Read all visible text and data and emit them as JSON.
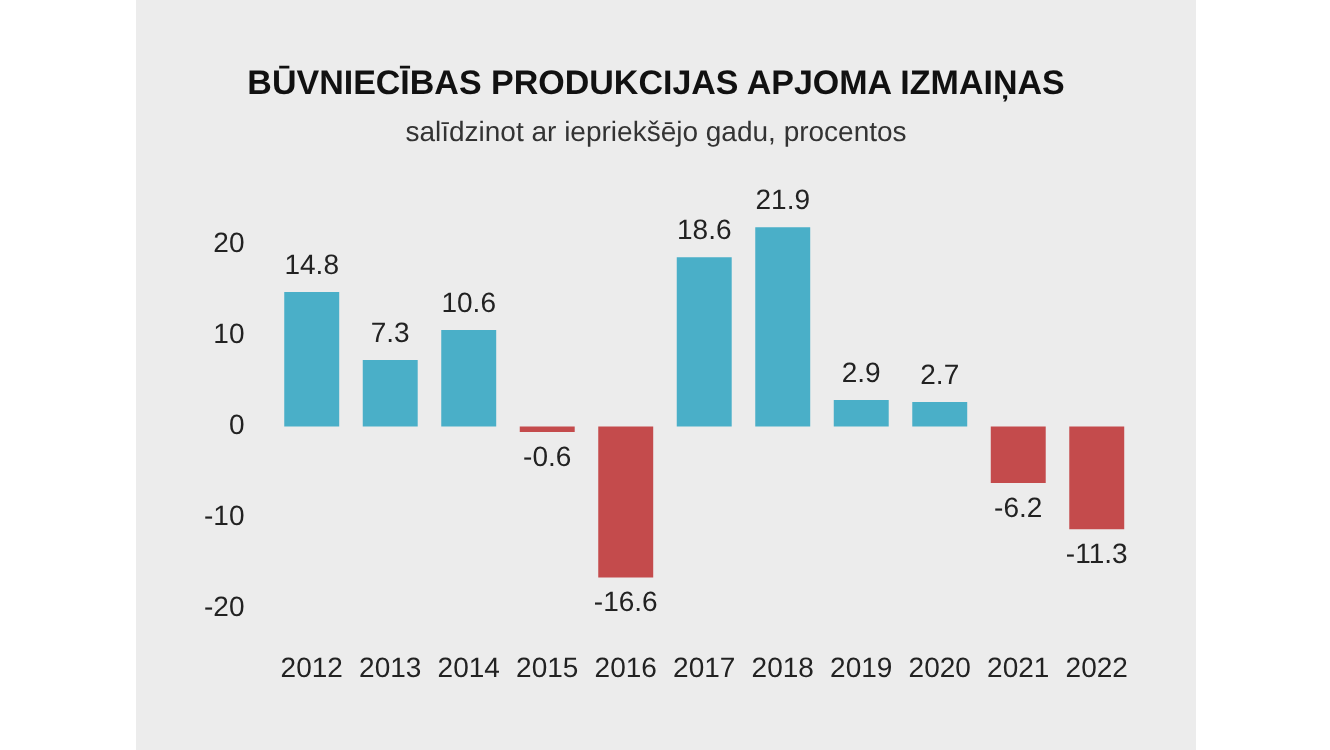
{
  "chart_data": {
    "type": "bar",
    "title": "BŪVNIECĪBAS PRODUKCIJAS APJOMA IZMAIŅAS",
    "subtitle": "salīdzinot ar iepriekšējo gadu, procentos",
    "categories": [
      "2012",
      "2013",
      "2014",
      "2015",
      "2016",
      "2017",
      "2018",
      "2019",
      "2020",
      "2021",
      "2022"
    ],
    "values": [
      14.8,
      7.3,
      10.6,
      -0.6,
      -16.6,
      18.6,
      21.9,
      2.9,
      2.7,
      -6.2,
      -11.3
    ],
    "colors": [
      "#4aafc8",
      "#4aafc8",
      "#4aafc8",
      "#c44b4c",
      "#c44b4c",
      "#4aafc8",
      "#4aafc8",
      "#4aafc8",
      "#4aafc8",
      "#c44b4c",
      "#c44b4c"
    ],
    "ylim": [
      -20,
      22
    ],
    "yticks": [
      -20,
      -10,
      0,
      10,
      20
    ],
    "grid": false,
    "legend": false,
    "data_labels": true
  }
}
